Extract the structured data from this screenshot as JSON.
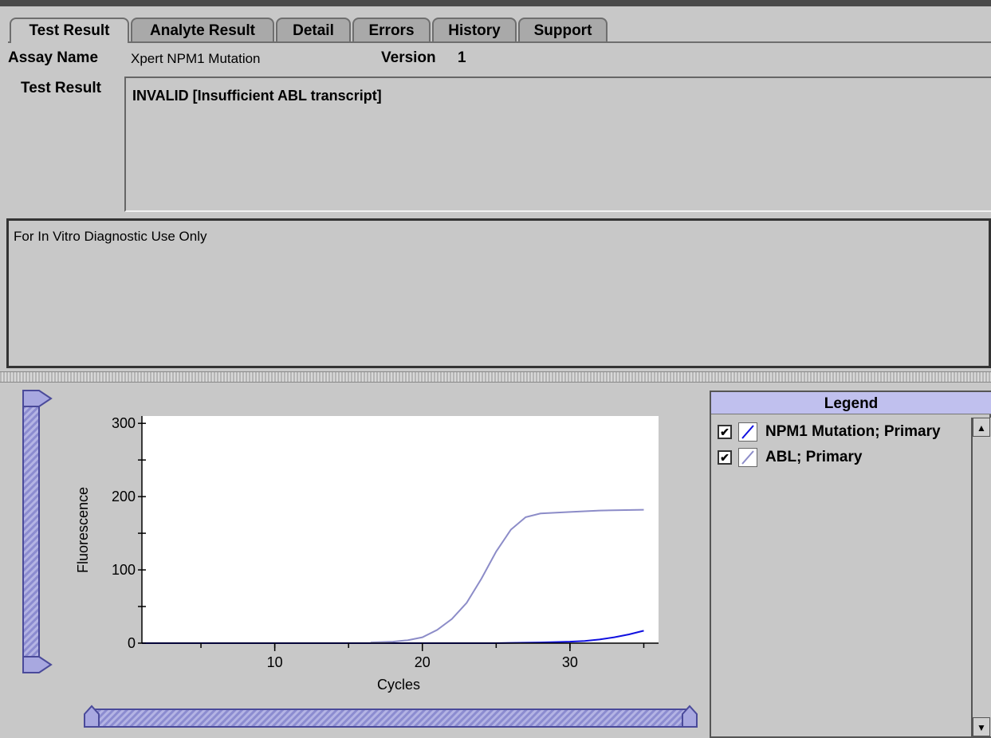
{
  "tabs": [
    {
      "label": "Test Result",
      "active": true
    },
    {
      "label": "Analyte Result",
      "active": false
    },
    {
      "label": "Detail",
      "active": false
    },
    {
      "label": "Errors",
      "active": false
    },
    {
      "label": "History",
      "active": false
    },
    {
      "label": "Support",
      "active": false
    }
  ],
  "assay": {
    "name_label": "Assay Name",
    "name_value": "Xpert NPM1 Mutation",
    "version_label": "Version",
    "version_value": "1"
  },
  "test_result": {
    "label": "Test Result",
    "value": "INVALID [Insufficient ABL transcript]"
  },
  "disclaimer": "For In Vitro Diagnostic Use Only",
  "legend": {
    "title": "Legend",
    "items": [
      {
        "label": "NPM1 Mutation; Primary",
        "checked": true,
        "color": "#1010e0"
      },
      {
        "label": "ABL; Primary",
        "checked": true,
        "color": "#8c8cc8"
      }
    ]
  },
  "chart_data": {
    "type": "line",
    "xlabel": "Cycles",
    "ylabel": "Fluorescence",
    "xlim": [
      1,
      36
    ],
    "ylim": [
      0,
      310
    ],
    "xticks": [
      10,
      20,
      30
    ],
    "yticks": [
      0,
      100,
      200,
      300
    ],
    "series": [
      {
        "name": "NPM1 Mutation; Primary",
        "color": "#1010e0",
        "x": [
          1,
          5,
          10,
          15,
          20,
          25,
          28,
          30,
          31,
          32,
          33,
          34,
          35
        ],
        "y": [
          0,
          0,
          0,
          0,
          0,
          0,
          1,
          2,
          3,
          5,
          8,
          12,
          17
        ]
      },
      {
        "name": "ABL; Primary",
        "color": "#8c8cc8",
        "x": [
          16.5,
          18,
          19,
          20,
          21,
          22,
          23,
          24,
          25,
          26,
          27,
          28,
          30,
          32,
          35
        ],
        "y": [
          1,
          2,
          4,
          8,
          18,
          33,
          55,
          88,
          125,
          155,
          172,
          177,
          179,
          181,
          182
        ]
      }
    ]
  }
}
